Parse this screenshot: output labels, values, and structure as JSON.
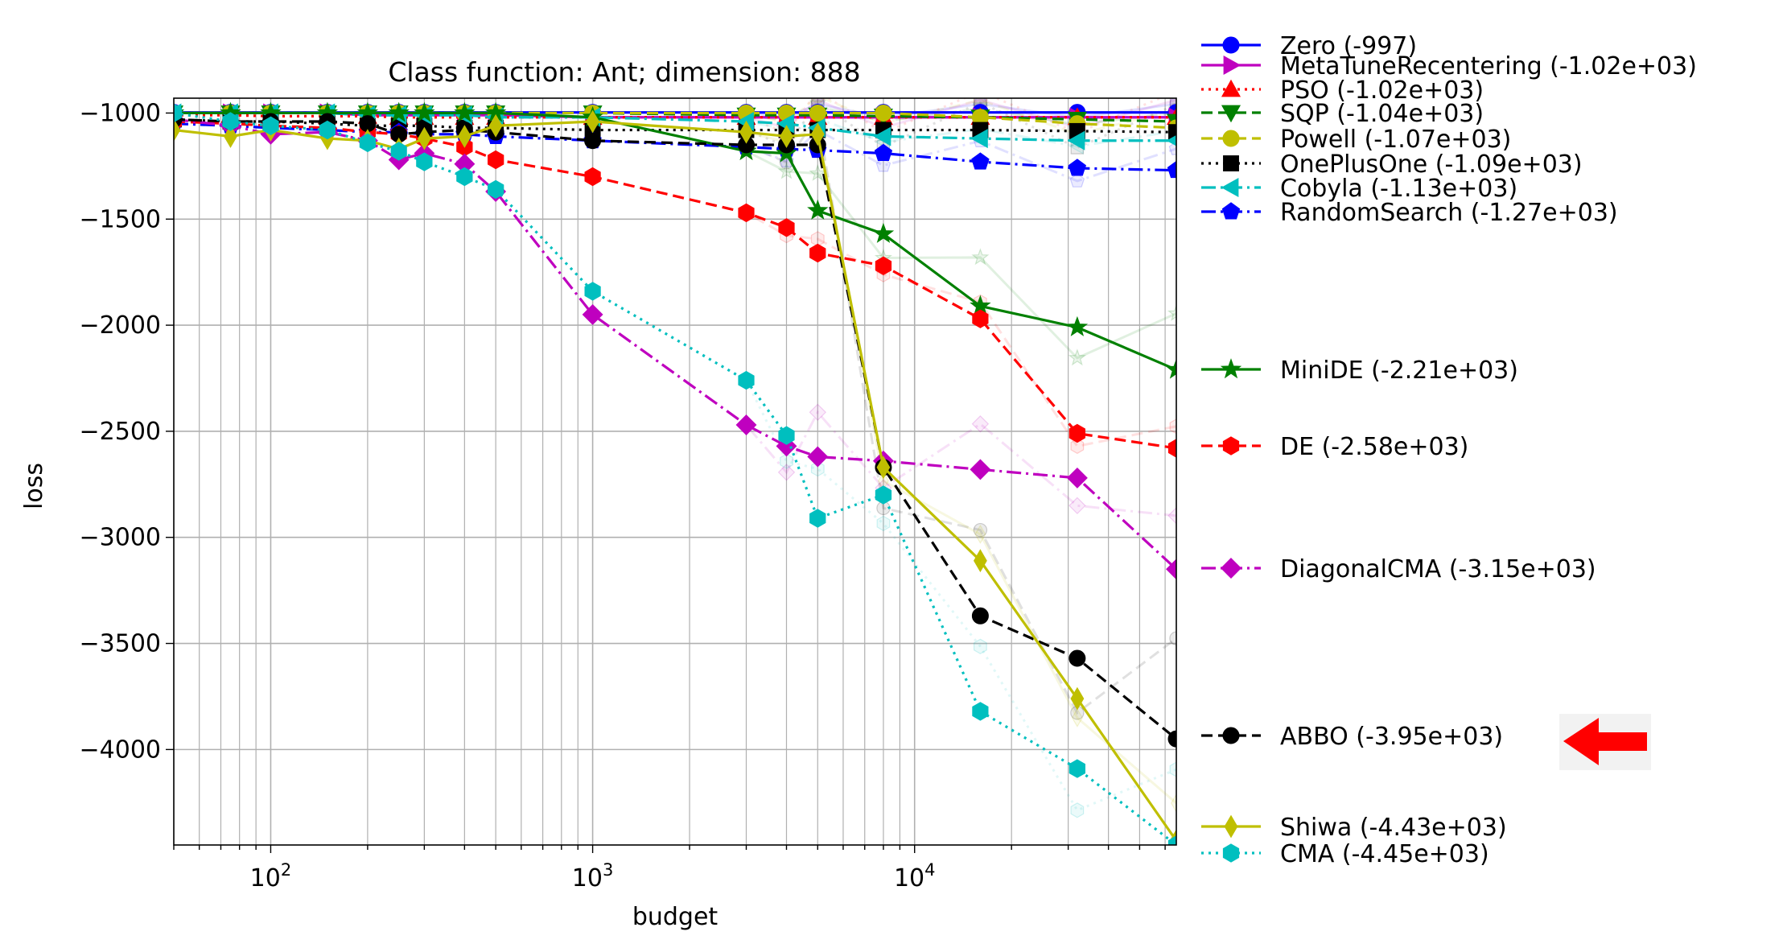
{
  "chart_data": {
    "type": "line",
    "title": "Class function: Ant; dimension: 888",
    "xlabel": "budget",
    "ylabel": "loss",
    "xscale": "log",
    "xlim": [
      50,
      65000
    ],
    "ylim": [
      -4450,
      -930
    ],
    "grid": true,
    "legend_position": "right",
    "x_ticks": [
      {
        "value": 100,
        "base": "10",
        "exp": "2"
      },
      {
        "value": 1000,
        "base": "10",
        "exp": "3"
      },
      {
        "value": 10000,
        "base": "10",
        "exp": "4"
      }
    ],
    "y_ticks": [
      {
        "value": -1000,
        "label": "−1000"
      },
      {
        "value": -1500,
        "label": "−1500"
      },
      {
        "value": -2000,
        "label": "−2000"
      },
      {
        "value": -2500,
        "label": "−2500"
      },
      {
        "value": -3000,
        "label": "−3000"
      },
      {
        "value": -3500,
        "label": "−3500"
      },
      {
        "value": -4000,
        "label": "−4000"
      }
    ],
    "series": [
      {
        "name": "Zero (-997)",
        "color": "#0000ff",
        "dash": "solid",
        "marker": "circle",
        "x": [
          50,
          75,
          100,
          150,
          200,
          250,
          300,
          400,
          500,
          1000,
          3000,
          4000,
          5000,
          8000,
          16000,
          32000,
          65000
        ],
        "y": [
          -997,
          -997,
          -997,
          -997,
          -997,
          -997,
          -997,
          -997,
          -997,
          -997,
          -997,
          -997,
          -997,
          -997,
          -997,
          -997,
          -997
        ]
      },
      {
        "name": "MetaTuneRecentering (-1.02e+03)",
        "color": "#bf00bf",
        "dash": "solid",
        "marker": "triangle-right",
        "x": [
          50,
          75,
          100,
          150,
          200,
          250,
          300,
          400,
          500,
          1000,
          3000,
          4000,
          5000,
          8000,
          16000,
          32000,
          65000
        ],
        "y": [
          -1000,
          -1000,
          -1000,
          -1000,
          -1010,
          -1010,
          -1010,
          -1010,
          -1010,
          -1020,
          -1020,
          -1020,
          -1020,
          -1020,
          -1020,
          -1020,
          -1020
        ]
      },
      {
        "name": "PSO (-1.02e+03)",
        "color": "#ff0000",
        "dash": "dotted",
        "marker": "triangle-up",
        "x": [
          50,
          75,
          100,
          150,
          200,
          250,
          300,
          400,
          500,
          1000,
          3000,
          4000,
          5000,
          8000,
          16000,
          32000,
          65000
        ],
        "y": [
          -1010,
          -1010,
          -1015,
          -1015,
          -1015,
          -1020,
          -1020,
          -1020,
          -1020,
          -1020,
          -1020,
          -1020,
          -1020,
          -1020,
          -1020,
          -1020,
          -1020
        ]
      },
      {
        "name": "SQP (-1.04e+03)",
        "color": "#008000",
        "dash": "dashed",
        "marker": "triangle-down",
        "x": [
          50,
          75,
          100,
          150,
          200,
          250,
          300,
          400,
          500,
          1000,
          3000,
          4000,
          5000,
          8000,
          16000,
          32000,
          65000
        ],
        "y": [
          -1000,
          -1000,
          -1000,
          -1000,
          -1000,
          -1000,
          -1000,
          -1000,
          -1000,
          -1000,
          -1010,
          -1010,
          -1010,
          -1015,
          -1020,
          -1030,
          -1040
        ]
      },
      {
        "name": "Powell (-1.07e+03)",
        "color": "#bfbf00",
        "dash": "dashed",
        "marker": "circle",
        "x": [
          50,
          75,
          100,
          150,
          200,
          250,
          300,
          400,
          500,
          1000,
          3000,
          4000,
          5000,
          8000,
          16000,
          32000,
          65000
        ],
        "y": [
          -1000,
          -1000,
          -1000,
          -1000,
          -1000,
          -1000,
          -1000,
          -1000,
          -1000,
          -1000,
          -1000,
          -1000,
          -1000,
          -1000,
          -1020,
          -1050,
          -1070
        ]
      },
      {
        "name": "OnePlusOne (-1.09e+03)",
        "color": "#000000",
        "dash": "dotted",
        "marker": "square",
        "x": [
          50,
          75,
          100,
          150,
          200,
          250,
          300,
          400,
          500,
          1000,
          3000,
          4000,
          5000,
          8000,
          16000,
          32000,
          65000
        ],
        "y": [
          -1030,
          -1040,
          -1040,
          -1050,
          -1060,
          -1060,
          -1060,
          -1070,
          -1070,
          -1080,
          -1080,
          -1080,
          -1080,
          -1080,
          -1080,
          -1085,
          -1090
        ]
      },
      {
        "name": "Cobyla (-1.13e+03)",
        "color": "#00bfbf",
        "dash": "dashdot",
        "marker": "triangle-left",
        "x": [
          50,
          75,
          100,
          150,
          200,
          250,
          300,
          400,
          500,
          1000,
          3000,
          4000,
          5000,
          8000,
          16000,
          32000,
          65000
        ],
        "y": [
          -1000,
          -1000,
          -1000,
          -1000,
          -1010,
          -1010,
          -1010,
          -1010,
          -1020,
          -1020,
          -1040,
          -1050,
          -1070,
          -1110,
          -1120,
          -1130,
          -1130
        ]
      },
      {
        "name": "RandomSearch (-1.27e+03)",
        "color": "#0000ff",
        "dash": "dashdot",
        "marker": "pentagon",
        "x": [
          50,
          75,
          100,
          150,
          200,
          250,
          300,
          400,
          500,
          1000,
          3000,
          4000,
          5000,
          8000,
          16000,
          32000,
          65000
        ],
        "y": [
          -1050,
          -1060,
          -1070,
          -1080,
          -1090,
          -1090,
          -1100,
          -1100,
          -1110,
          -1130,
          -1160,
          -1170,
          -1175,
          -1190,
          -1230,
          -1260,
          -1270
        ]
      },
      {
        "name": "MiniDE (-2.21e+03)",
        "color": "#008000",
        "dash": "solid",
        "marker": "star",
        "x": [
          50,
          75,
          100,
          150,
          200,
          250,
          300,
          400,
          500,
          1000,
          3000,
          4000,
          5000,
          8000,
          16000,
          32000,
          65000
        ],
        "y": [
          -1000,
          -1000,
          -1000,
          -1000,
          -1000,
          -1000,
          -1000,
          -1000,
          -1000,
          -1020,
          -1180,
          -1190,
          -1460,
          -1570,
          -1910,
          -2010,
          -2210
        ]
      },
      {
        "name": "DE (-2.58e+03)",
        "color": "#ff0000",
        "dash": "dashed",
        "marker": "hexagon",
        "x": [
          50,
          75,
          100,
          150,
          200,
          250,
          300,
          400,
          500,
          1000,
          3000,
          4000,
          5000,
          8000,
          16000,
          32000,
          65000
        ],
        "y": [
          -1040,
          -1050,
          -1060,
          -1070,
          -1090,
          -1100,
          -1120,
          -1160,
          -1220,
          -1300,
          -1470,
          -1540,
          -1660,
          -1720,
          -1970,
          -2510,
          -2580
        ]
      },
      {
        "name": "DiagonalCMA (-3.15e+03)",
        "color": "#bf00bf",
        "dash": "dashdot",
        "marker": "diamond",
        "x": [
          50,
          75,
          100,
          150,
          200,
          250,
          300,
          400,
          500,
          1000,
          3000,
          4000,
          5000,
          8000,
          16000,
          32000,
          65000
        ],
        "y": [
          -1030,
          -1060,
          -1100,
          -1090,
          -1130,
          -1220,
          -1190,
          -1240,
          -1370,
          -1950,
          -2470,
          -2570,
          -2620,
          -2640,
          -2680,
          -2720,
          -3150
        ]
      },
      {
        "name": "ABBO (-3.95e+03)",
        "color": "#000000",
        "dash": "dashed",
        "marker": "circle",
        "x": [
          50,
          75,
          100,
          150,
          200,
          250,
          300,
          400,
          500,
          1000,
          3000,
          4000,
          5000,
          8000,
          16000,
          32000,
          65000
        ],
        "y": [
          -1030,
          -1040,
          -1040,
          -1040,
          -1050,
          -1100,
          -1090,
          -1080,
          -1090,
          -1130,
          -1150,
          -1150,
          -1150,
          -2670,
          -3370,
          -3570,
          -3950
        ]
      },
      {
        "name": "Shiwa (-4.43e+03)",
        "color": "#bfbf00",
        "dash": "solid",
        "marker": "thin-diamond",
        "x": [
          50,
          75,
          100,
          150,
          200,
          250,
          300,
          400,
          500,
          1000,
          3000,
          4000,
          5000,
          8000,
          16000,
          32000,
          65000
        ],
        "y": [
          -1080,
          -1110,
          -1080,
          -1120,
          -1130,
          -1170,
          -1120,
          -1110,
          -1060,
          -1040,
          -1090,
          -1110,
          -1100,
          -2670,
          -3110,
          -3760,
          -4430
        ]
      },
      {
        "name": "CMA (-4.45e+03)",
        "color": "#00bfbf",
        "dash": "dotted",
        "marker": "hexagon",
        "x": [
          50,
          75,
          100,
          150,
          200,
          250,
          300,
          400,
          500,
          1000,
          3000,
          4000,
          5000,
          8000,
          16000,
          32000,
          65000
        ],
        "y": [
          -1000,
          -1040,
          -1060,
          -1080,
          -1140,
          -1180,
          -1230,
          -1300,
          -1360,
          -1840,
          -2260,
          -2520,
          -2910,
          -2800,
          -3820,
          -4090,
          -4450
        ]
      }
    ],
    "annotation": {
      "type": "arrow",
      "points_to": "ABBO (-3.95e+03)",
      "color": "#ff0000"
    }
  }
}
